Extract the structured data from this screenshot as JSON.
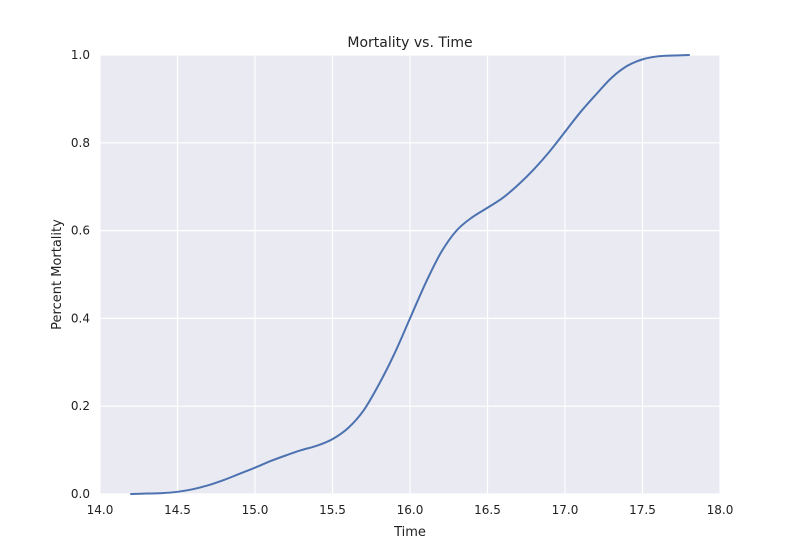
{
  "chart_data": {
    "type": "line",
    "title": "Mortality vs. Time",
    "xlabel": "Time",
    "ylabel": "Percent Mortality",
    "xlim": [
      14.0,
      18.0
    ],
    "ylim": [
      0.0,
      1.0
    ],
    "x_ticks": [
      14.0,
      14.5,
      15.0,
      15.5,
      16.0,
      16.5,
      17.0,
      17.5,
      18.0
    ],
    "x_tick_labels": [
      "14.0",
      "14.5",
      "15.0",
      "15.5",
      "16.0",
      "16.5",
      "17.0",
      "17.5",
      "18.0"
    ],
    "y_ticks": [
      0.0,
      0.2,
      0.4,
      0.6,
      0.8,
      1.0
    ],
    "y_tick_labels": [
      "0.0",
      "0.2",
      "0.4",
      "0.6",
      "0.8",
      "1.0"
    ],
    "grid": true,
    "legend": "none",
    "colors": {
      "plot_background": "#eaeaf2",
      "grid": "#ffffff",
      "line": "#4c72b0"
    },
    "series": [
      {
        "x": [
          14.2,
          14.3,
          14.4,
          14.5,
          14.6,
          14.7,
          14.8,
          14.9,
          15.0,
          15.1,
          15.2,
          15.3,
          15.4,
          15.5,
          15.6,
          15.7,
          15.8,
          15.9,
          16.0,
          16.1,
          16.2,
          16.3,
          16.4,
          16.5,
          16.6,
          16.7,
          16.8,
          16.9,
          17.0,
          17.1,
          17.2,
          17.3,
          17.4,
          17.5,
          17.6,
          17.7,
          17.8
        ],
        "y": [
          0.0,
          0.001,
          0.002,
          0.005,
          0.011,
          0.02,
          0.032,
          0.046,
          0.06,
          0.075,
          0.088,
          0.1,
          0.11,
          0.125,
          0.15,
          0.19,
          0.25,
          0.32,
          0.4,
          0.48,
          0.55,
          0.6,
          0.63,
          0.652,
          0.675,
          0.705,
          0.74,
          0.78,
          0.825,
          0.87,
          0.91,
          0.948,
          0.975,
          0.99,
          0.997,
          0.999,
          1.0
        ]
      }
    ]
  }
}
